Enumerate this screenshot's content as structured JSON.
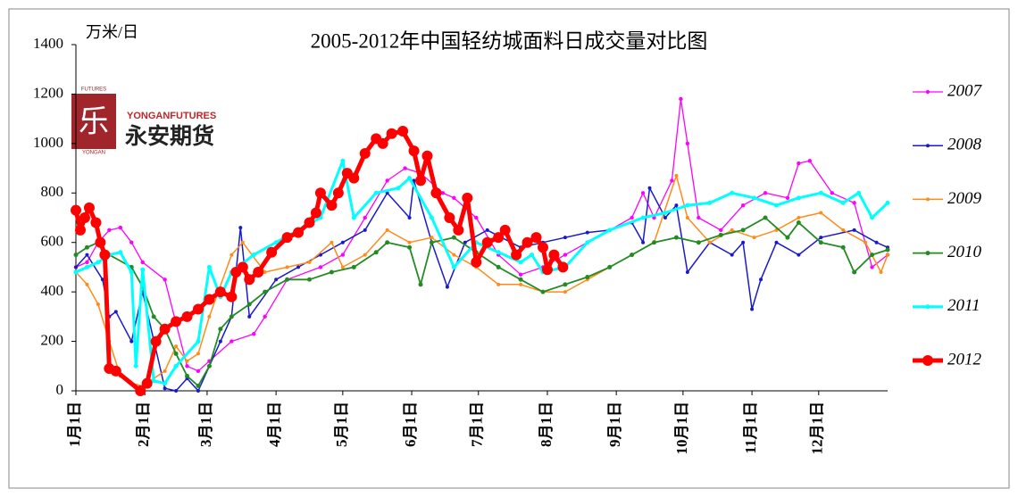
{
  "chart_data": {
    "type": "line",
    "title": "2005-2012年中国轻纺城面料日成交量对比图",
    "y_axis_label": "万米/日",
    "logo": {
      "small_top": "FUTURES",
      "small_side": "YONGAN",
      "brand_en": "YONGANFUTURES",
      "brand_cn": "永安期货"
    },
    "xlim": [
      0,
      365
    ],
    "xticks": [
      {
        "value": 0,
        "label": "1月1日"
      },
      {
        "value": 31,
        "label": "2月1日"
      },
      {
        "value": 59,
        "label": "3月1日"
      },
      {
        "value": 90,
        "label": "4月1日"
      },
      {
        "value": 120,
        "label": "5月1日"
      },
      {
        "value": 151,
        "label": "6月1日"
      },
      {
        "value": 181,
        "label": "7月1日"
      },
      {
        "value": 212,
        "label": "8月1日"
      },
      {
        "value": 243,
        "label": "9月1日"
      },
      {
        "value": 273,
        "label": "10月1日"
      },
      {
        "value": 304,
        "label": "11月1日"
      },
      {
        "value": 334,
        "label": "12月1日"
      }
    ],
    "ylim": [
      0,
      1400
    ],
    "yticks": [
      0,
      200,
      400,
      600,
      800,
      1000,
      1200,
      1400
    ],
    "legend": "right",
    "series": [
      {
        "name": "2007",
        "color": "#ff00ff",
        "x": [
          0,
          5,
          10,
          15,
          20,
          25,
          30,
          40,
          50,
          55,
          60,
          70,
          80,
          85,
          95,
          110,
          120,
          130,
          140,
          148,
          155,
          165,
          170,
          180,
          190,
          200,
          210,
          220,
          230,
          240,
          250,
          255,
          260,
          268,
          272,
          275,
          280,
          290,
          300,
          310,
          320,
          325,
          330,
          340,
          350,
          358,
          365
        ],
        "values": [
          500,
          520,
          600,
          650,
          660,
          600,
          520,
          450,
          100,
          80,
          120,
          200,
          230,
          300,
          450,
          500,
          550,
          700,
          850,
          900,
          880,
          800,
          780,
          700,
          550,
          470,
          500,
          550,
          600,
          650,
          700,
          800,
          700,
          850,
          1180,
          1000,
          700,
          650,
          750,
          800,
          780,
          920,
          930,
          800,
          760,
          500,
          550
        ]
      },
      {
        "name": "2008",
        "color": "#1a1acc",
        "x": [
          0,
          5,
          12,
          15,
          18,
          25,
          30,
          40,
          45,
          50,
          55,
          65,
          70,
          74,
          78,
          90,
          100,
          110,
          120,
          130,
          140,
          150,
          152,
          160,
          167,
          175,
          185,
          200,
          210,
          220,
          230,
          240,
          250,
          255,
          258,
          265,
          270,
          275,
          285,
          295,
          300,
          304,
          308,
          315,
          325,
          335,
          350,
          360,
          365
        ],
        "values": [
          500,
          550,
          450,
          300,
          320,
          200,
          400,
          10,
          0,
          50,
          0,
          200,
          300,
          660,
          300,
          450,
          500,
          550,
          600,
          650,
          800,
          700,
          850,
          600,
          420,
          600,
          650,
          580,
          600,
          620,
          640,
          650,
          680,
          600,
          820,
          700,
          750,
          480,
          600,
          550,
          600,
          330,
          450,
          600,
          550,
          620,
          650,
          600,
          580
        ]
      },
      {
        "name": "2009",
        "color": "#ff8c1a",
        "x": [
          0,
          5,
          10,
          15,
          20,
          25,
          30,
          40,
          45,
          50,
          55,
          60,
          70,
          75,
          85,
          95,
          105,
          115,
          120,
          130,
          140,
          150,
          160,
          170,
          180,
          190,
          200,
          210,
          220,
          230,
          240,
          250,
          260,
          270,
          275,
          285,
          295,
          305,
          315,
          325,
          335,
          345,
          355,
          362,
          365
        ],
        "values": [
          480,
          430,
          350,
          200,
          60,
          30,
          20,
          80,
          180,
          120,
          150,
          300,
          550,
          600,
          480,
          500,
          520,
          600,
          500,
          550,
          650,
          600,
          620,
          550,
          500,
          430,
          430,
          400,
          400,
          450,
          500,
          550,
          600,
          870,
          700,
          600,
          650,
          620,
          650,
          700,
          720,
          650,
          600,
          480,
          550
        ]
      },
      {
        "name": "2010",
        "color": "#228b22",
        "x": [
          0,
          5,
          10,
          15,
          25,
          30,
          35,
          40,
          45,
          50,
          55,
          60,
          65,
          70,
          78,
          85,
          95,
          105,
          115,
          125,
          135,
          140,
          150,
          155,
          160,
          170,
          180,
          190,
          200,
          210,
          220,
          230,
          240,
          250,
          260,
          270,
          280,
          290,
          300,
          310,
          320,
          325,
          335,
          345,
          350,
          358,
          365
        ],
        "values": [
          550,
          580,
          600,
          550,
          500,
          420,
          300,
          250,
          150,
          60,
          20,
          100,
          250,
          300,
          350,
          400,
          450,
          450,
          480,
          500,
          560,
          600,
          580,
          430,
          600,
          620,
          560,
          500,
          450,
          400,
          430,
          460,
          500,
          550,
          600,
          620,
          600,
          630,
          650,
          700,
          620,
          680,
          600,
          580,
          480,
          550,
          570
        ]
      },
      {
        "name": "2011",
        "color": "#00ffff",
        "x": [
          0,
          5,
          10,
          15,
          20,
          25,
          27,
          30,
          35,
          40,
          45,
          55,
          60,
          65,
          70,
          80,
          90,
          100,
          110,
          120,
          125,
          135,
          145,
          150,
          160,
          170,
          180,
          190,
          200,
          205,
          210,
          220,
          230,
          240,
          255,
          265,
          275,
          285,
          295,
          305,
          315,
          325,
          335,
          345,
          352,
          358,
          365
        ],
        "values": [
          480,
          500,
          520,
          550,
          560,
          480,
          100,
          490,
          40,
          30,
          100,
          200,
          500,
          380,
          480,
          550,
          600,
          650,
          700,
          930,
          700,
          800,
          820,
          860,
          700,
          500,
          600,
          560,
          520,
          550,
          480,
          500,
          600,
          650,
          700,
          720,
          750,
          760,
          800,
          780,
          750,
          780,
          800,
          760,
          800,
          700,
          760
        ]
      },
      {
        "name": "2012",
        "color": "#ff0000",
        "x": [
          0,
          2,
          4,
          6,
          9,
          11,
          13,
          15,
          18,
          29,
          32,
          36,
          40,
          45,
          50,
          55,
          60,
          65,
          70,
          72,
          75,
          78,
          82,
          88,
          95,
          100,
          105,
          108,
          110,
          115,
          118,
          122,
          125,
          130,
          135,
          138,
          142,
          147,
          152,
          155,
          158,
          162,
          168,
          172,
          176,
          180,
          185,
          190,
          193,
          198,
          203,
          207,
          210,
          212,
          215,
          219
        ],
        "values": [
          730,
          650,
          700,
          740,
          680,
          600,
          550,
          90,
          80,
          0,
          30,
          200,
          250,
          280,
          300,
          330,
          370,
          400,
          380,
          480,
          500,
          450,
          480,
          560,
          620,
          640,
          680,
          720,
          800,
          750,
          800,
          880,
          860,
          960,
          1020,
          1000,
          1040,
          1050,
          970,
          850,
          950,
          800,
          700,
          650,
          780,
          520,
          600,
          620,
          650,
          550,
          600,
          620,
          580,
          490,
          550,
          500
        ]
      }
    ]
  }
}
